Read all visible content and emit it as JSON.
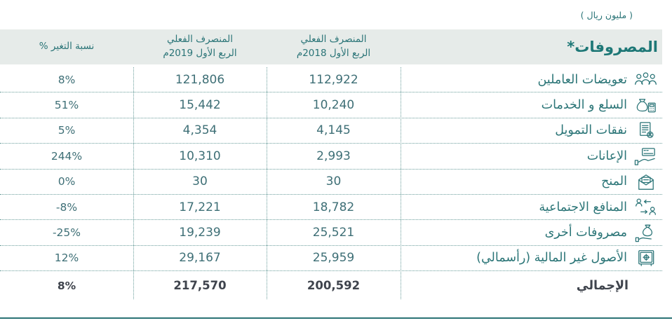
{
  "unit_note": "( مليون ريال )",
  "colors": {
    "accent_teal": "#2a7477",
    "header_background": "#e6ebe9",
    "total_text": "#3f444d",
    "bottom_rule": "#2a7375"
  },
  "table": {
    "headers": {
      "expenses": "المصروفات*",
      "col_2018_line1": "المنصرف الفعلي",
      "col_2018_line2": "الربع الأول 2018م",
      "col_2019_line1": "المنصرف الفعلي",
      "col_2019_line2": "الربع الأول 2019م",
      "change": "نسبة التغير %"
    },
    "rows": [
      {
        "label": "تعويضات العاملين",
        "icon": "workers-icon",
        "v2018": "112,922",
        "v2019": "121,806",
        "change": "8%"
      },
      {
        "label": "السلع و الخدمات",
        "icon": "money-bag-calculator-icon",
        "v2018": "10,240",
        "v2019": "15,442",
        "change": "51%"
      },
      {
        "label": "نفقات التمويل",
        "icon": "document-percent-icon",
        "v2018": "4,145",
        "v2019": "4,354",
        "change": "5%"
      },
      {
        "label": "الإعانات",
        "icon": "hand-card-icon",
        "v2018": "2,993",
        "v2019": "10,310",
        "change": "244%"
      },
      {
        "label": "المنح",
        "icon": "envelope-letter-icon",
        "v2018": "30",
        "v2019": "30",
        "change": "0%"
      },
      {
        "label": "المنافع الاجتماعية",
        "icon": "people-exchange-icon",
        "v2018": "18,782",
        "v2019": "17,221",
        "change": "-8%"
      },
      {
        "label": "مصروفات أخرى",
        "icon": "hand-money-bag-icon",
        "v2018": "25,521",
        "v2019": "19,239",
        "change": "-25%"
      },
      {
        "label": "الأصول غير المالية (رأسمالي)",
        "icon": "safe-icon",
        "v2018": "25,959",
        "v2019": "29,167",
        "change": "12%"
      }
    ],
    "total": {
      "label": "الإجمالي",
      "v2018": "200,592",
      "v2019": "217,570",
      "change": "8%"
    }
  }
}
